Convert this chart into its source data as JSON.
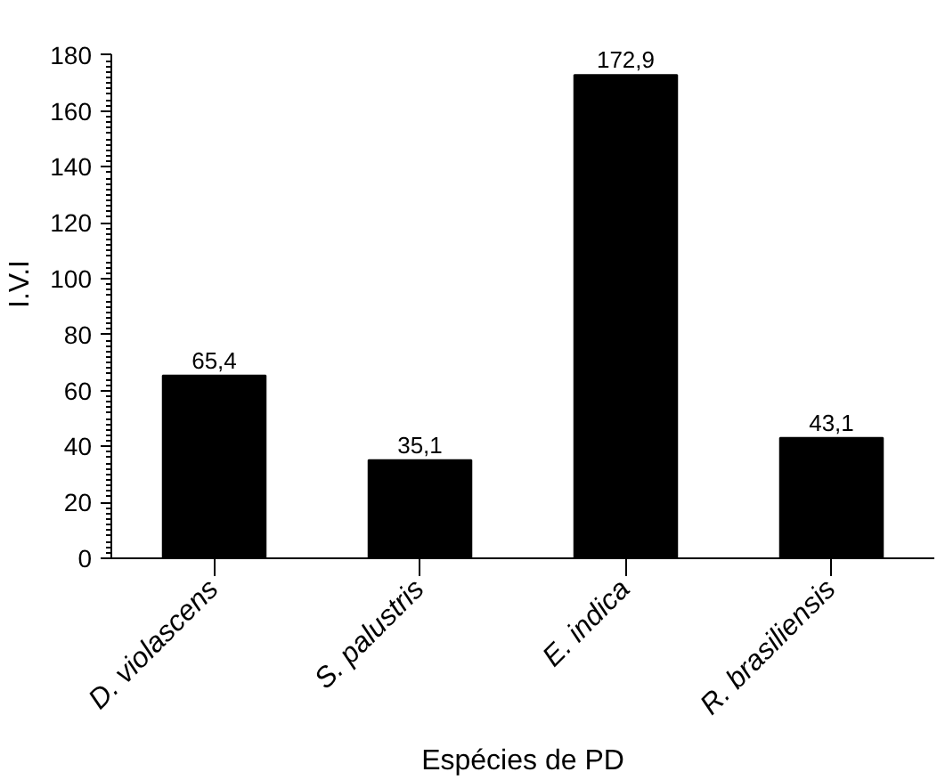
{
  "chart_data": {
    "type": "bar",
    "xlabel": "Espécies de PD",
    "ylabel": "I.V.I",
    "categories": [
      "D. violascens",
      "S. palustris",
      "E. indica",
      "R. brasiliensis"
    ],
    "values": [
      65.4,
      35.1,
      172.9,
      43.1
    ],
    "value_labels": [
      "65,4",
      "35,1",
      "172,9",
      "43,1"
    ],
    "color": "#000000",
    "ylim": [
      0,
      180
    ],
    "yticks": [
      0,
      20,
      40,
      60,
      80,
      100,
      120,
      140,
      160,
      180
    ],
    "grid": false
  }
}
